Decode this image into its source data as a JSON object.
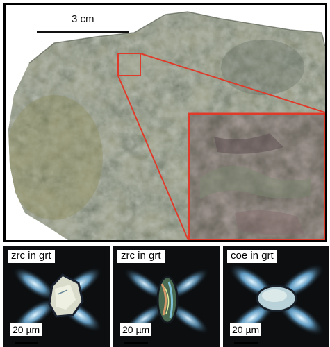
{
  "sample": {
    "scale_label": "3 cm"
  },
  "micrographs": [
    {
      "label": "zrc in grt",
      "scale_label": "20 µm"
    },
    {
      "label": "zrc in grt",
      "scale_label": "20 µm"
    },
    {
      "label": "coe in grt",
      "scale_label": "20 µm"
    }
  ],
  "colors": {
    "frame": "#000000",
    "inset_outline": "#e03a2a",
    "rock": "#6f7a63"
  }
}
